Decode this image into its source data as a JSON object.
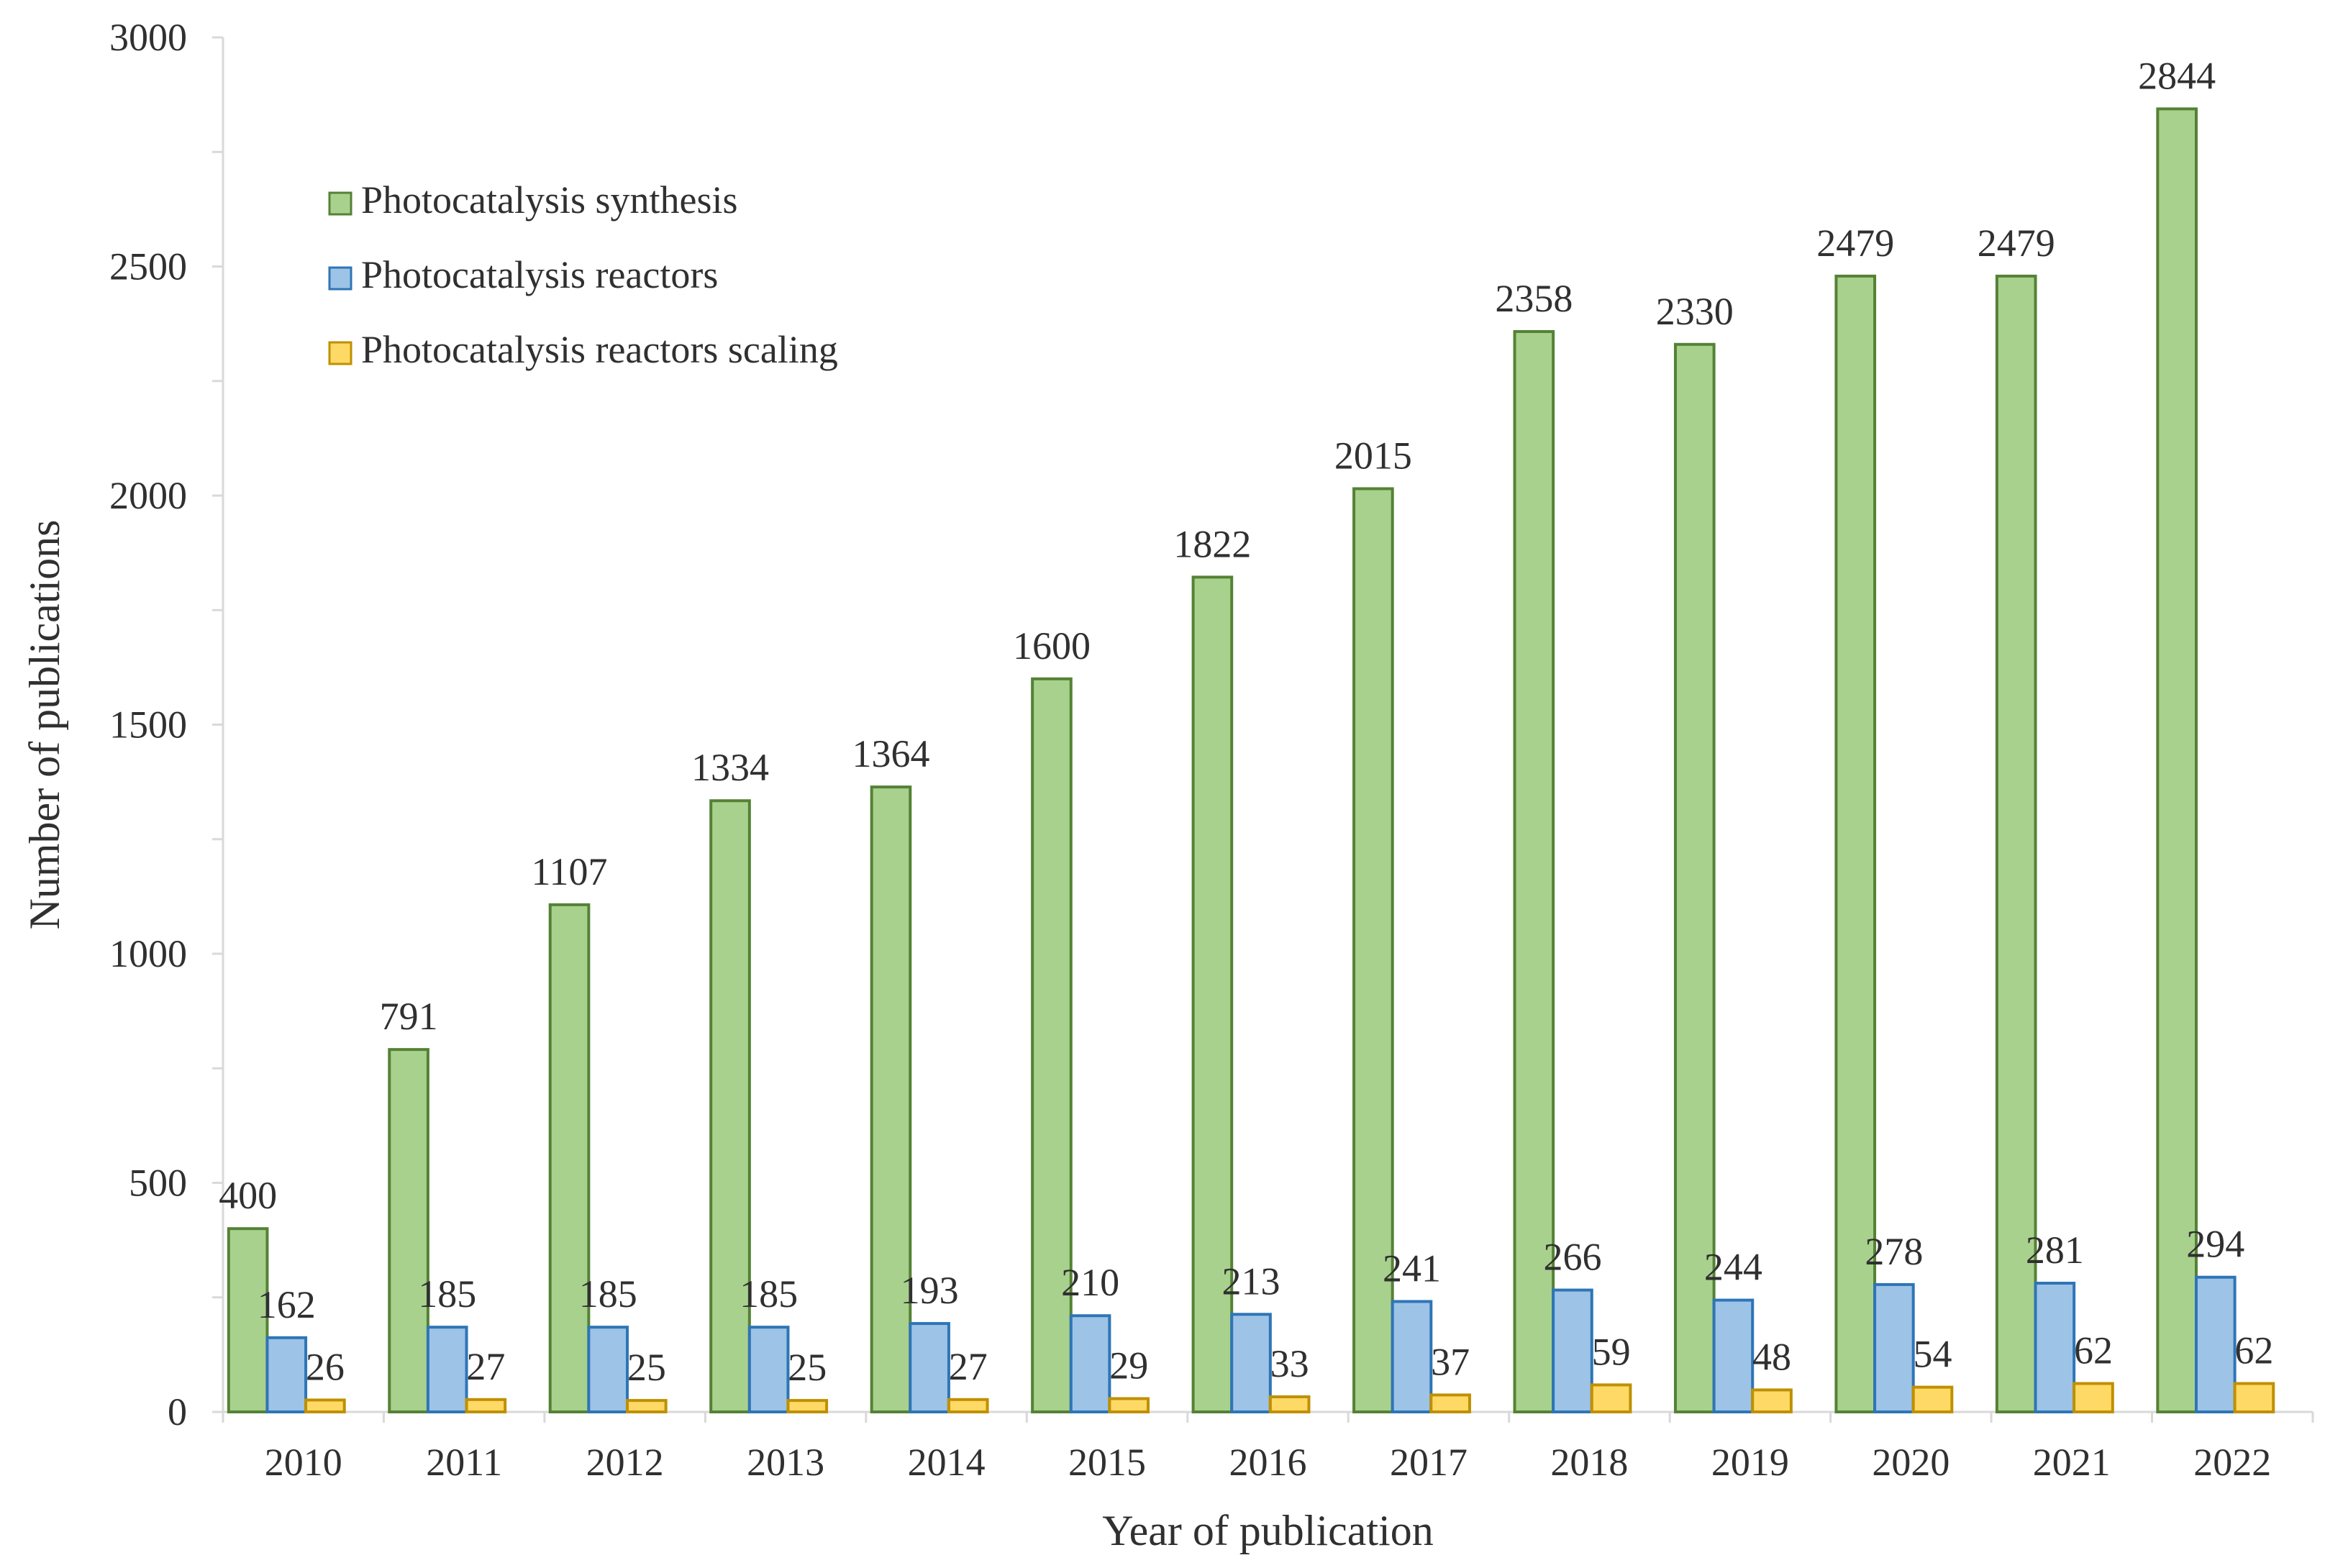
{
  "chart_data": {
    "type": "bar",
    "title": "",
    "xlabel": "Year of publication",
    "ylabel": "Number of publications",
    "ylim": [
      0,
      3000
    ],
    "yticks": [
      0,
      500,
      1000,
      1500,
      2000,
      2500,
      3000
    ],
    "categories": [
      "2010",
      "2011",
      "2012",
      "2013",
      "2014",
      "2015",
      "2016",
      "2017",
      "2018",
      "2019",
      "2020",
      "2021",
      "2022"
    ],
    "legend_position": "upper-left",
    "grid": false,
    "series": [
      {
        "name": "Photocatalysis synthesis",
        "color": "#a9d18e",
        "stroke": "#548235",
        "values": [
          400,
          791,
          1107,
          1334,
          1364,
          1600,
          1822,
          2015,
          2358,
          2330,
          2479,
          2479,
          2844
        ]
      },
      {
        "name": "Photocatalysis reactors",
        "color": "#9dc3e6",
        "stroke": "#2e75b6",
        "values": [
          162,
          185,
          185,
          185,
          193,
          210,
          213,
          241,
          266,
          244,
          278,
          281,
          294
        ]
      },
      {
        "name": "Photocatalysis reactors scaling",
        "color": "#ffd966",
        "stroke": "#bf9000",
        "values": [
          26,
          27,
          25,
          25,
          27,
          29,
          33,
          37,
          59,
          48,
          54,
          62,
          62
        ]
      }
    ]
  }
}
